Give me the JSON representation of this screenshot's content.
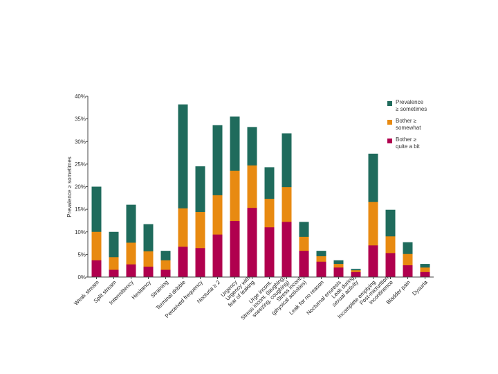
{
  "chart_data": {
    "type": "bar",
    "title": "",
    "xlabel": "",
    "ylabel": "Prevalence ≥ sometimes",
    "ylim": [
      0,
      40
    ],
    "ytick_values": [
      0,
      5,
      10,
      15,
      20,
      25,
      30,
      35,
      40
    ],
    "ytick_labels": [
      "0%",
      "5%",
      "10%",
      "15%",
      "20%",
      "25%",
      "30%",
      "35%",
      "40%"
    ],
    "categories": [
      [
        "Weak stream"
      ],
      [
        "Split stream"
      ],
      [
        "Intermittency"
      ],
      [
        "Hesitancy"
      ],
      [
        "Straining"
      ],
      [
        "Terminal dribble"
      ],
      [
        "Perceived frequency"
      ],
      [
        "Nocturia ≥ 2"
      ],
      [
        "Urgency"
      ],
      [
        "Urgency with",
        "fear of leaking"
      ],
      [
        "Urge incont."
      ],
      [
        "Stress incont. (laughing,",
        "sneezing, coughing)"
      ],
      [
        "Stress incont.",
        "(physical activities)"
      ],
      [
        "Leak for no reason"
      ],
      [
        "Nocturnal enuresis"
      ],
      [
        "Leak during",
        "sexual activity"
      ],
      [
        "Incomplete emptying"
      ],
      [
        "Post-micturition",
        "incontinence"
      ],
      [
        "Bladder pain"
      ],
      [
        "Dysuria"
      ]
    ],
    "series": [
      {
        "name": "Prevalence ≥ sometimes",
        "label_lines": [
          "Prevalence",
          "≥ sometimes"
        ],
        "color": "#1f6b5c",
        "values": [
          20,
          10,
          16,
          11.7,
          5.8,
          38.2,
          24.5,
          33.6,
          35.5,
          33.2,
          24.3,
          31.8,
          12.2,
          5.8,
          3.7,
          1.8,
          27.3,
          14.9,
          7.7,
          2.9
        ]
      },
      {
        "name": "Bother ≥ somewhat",
        "label_lines": [
          "Bother ≥",
          "somewhat"
        ],
        "color": "#e88a11",
        "values": [
          10,
          4.4,
          7.6,
          5.7,
          3.7,
          15.2,
          14.4,
          18.1,
          23.5,
          24.7,
          17.3,
          19.9,
          8.9,
          4.6,
          2.9,
          1.5,
          16.6,
          9.0,
          5.1,
          2.1
        ]
      },
      {
        "name": "Bother ≥ quite a bit",
        "label_lines": [
          "Bother ≥",
          "quite a bit"
        ],
        "color": "#b0004e",
        "values": [
          3.7,
          1.6,
          2.8,
          2.3,
          1.6,
          6.7,
          6.4,
          9.4,
          12.4,
          15.3,
          11.0,
          12.2,
          5.8,
          3.4,
          2.1,
          1.1,
          7.0,
          5.3,
          2.6,
          1.1
        ]
      }
    ],
    "legend_position": "top-right",
    "grid": false
  }
}
